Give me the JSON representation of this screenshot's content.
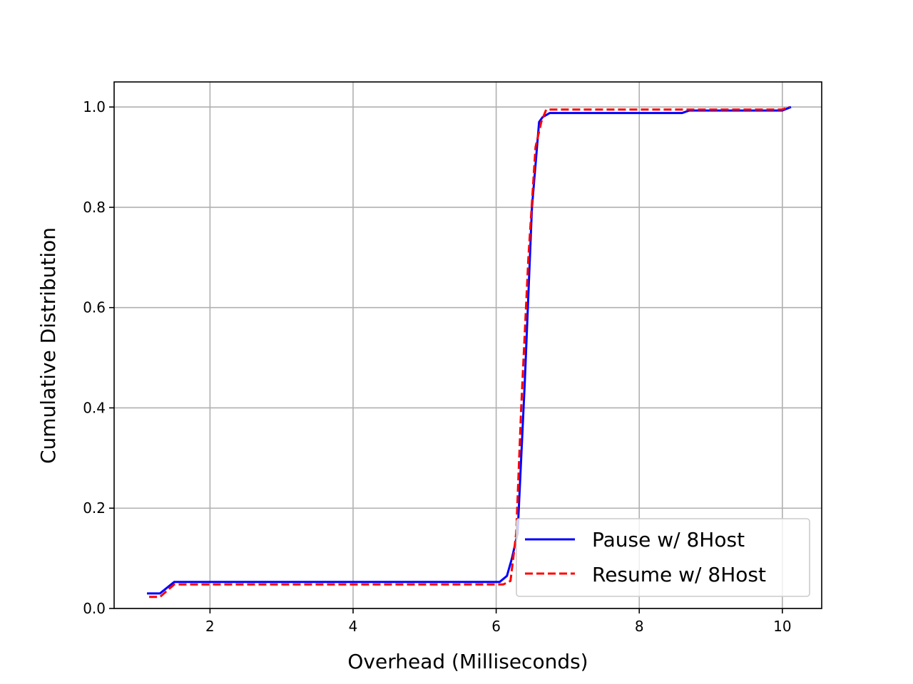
{
  "chart_data": {
    "type": "line",
    "title": "",
    "xlabel": "Overhead (Milliseconds)",
    "ylabel": "Cumulative Distribution",
    "xlim": [
      0.66,
      10.55
    ],
    "ylim": [
      0.0,
      1.05
    ],
    "xticks": [
      2,
      4,
      6,
      8,
      10
    ],
    "yticks": [
      0.0,
      0.2,
      0.4,
      0.6,
      0.8,
      1.0
    ],
    "xtick_labels": [
      "2",
      "4",
      "6",
      "8",
      "10"
    ],
    "ytick_labels": [
      "0.0",
      "0.2",
      "0.4",
      "0.6",
      "0.8",
      "1.0"
    ],
    "grid": true,
    "legend_position": "lower-right",
    "series": [
      {
        "name": "Pause w/ 8Host",
        "color": "#0000ff",
        "style": "solid",
        "x": [
          1.12,
          1.3,
          1.5,
          6.05,
          6.15,
          6.22,
          6.3,
          6.4,
          6.5,
          6.6,
          6.65,
          6.75,
          8.6,
          8.7,
          10.0,
          10.12
        ],
        "y": [
          0.03,
          0.03,
          0.053,
          0.053,
          0.065,
          0.1,
          0.15,
          0.45,
          0.8,
          0.97,
          0.98,
          0.988,
          0.988,
          0.993,
          0.993,
          1.0
        ]
      },
      {
        "name": "Resume w/ 8Host",
        "color": "#ff0000",
        "style": "dashed",
        "x": [
          1.15,
          1.3,
          1.5,
          6.1,
          6.2,
          6.28,
          6.35,
          6.45,
          6.55,
          6.63,
          6.7,
          10.0,
          10.1
        ],
        "y": [
          0.023,
          0.023,
          0.048,
          0.048,
          0.055,
          0.15,
          0.4,
          0.7,
          0.92,
          0.97,
          0.995,
          0.995,
          1.0
        ]
      }
    ]
  }
}
